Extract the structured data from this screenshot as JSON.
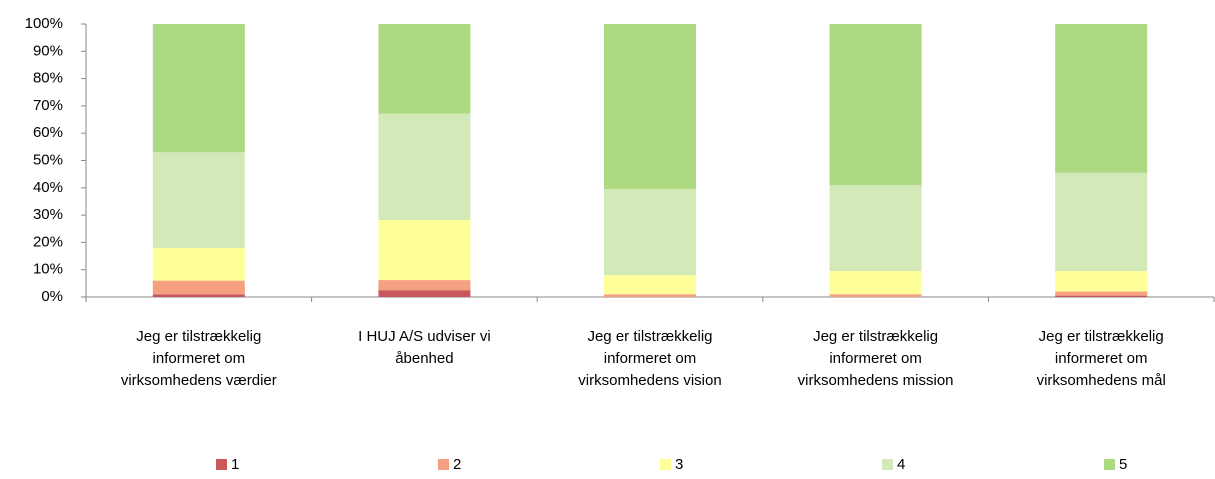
{
  "chart_data": {
    "type": "stacked_bar_percent",
    "categories": [
      [
        "Jeg er tilstrækkelig",
        "informeret om",
        "virksomhedens værdier"
      ],
      [
        "I HUJ A/S udviser vi",
        "åbenhed"
      ],
      [
        "Jeg er tilstrækkelig",
        "informeret om",
        "virksomhedens vision"
      ],
      [
        "Jeg er tilstrækkelig",
        "informeret om",
        "virksomhedens mission"
      ],
      [
        "Jeg er tilstrækkelig",
        "informeret om",
        "virksomhedens mål"
      ]
    ],
    "series": [
      {
        "name": "1",
        "color": "#c9585a",
        "values": [
          1,
          2.5,
          0,
          0,
          0.5
        ]
      },
      {
        "name": "2",
        "color": "#f4a081",
        "values": [
          5,
          3.7,
          1,
          1,
          1.5
        ]
      },
      {
        "name": "3",
        "color": "#ffff99",
        "values": [
          12,
          22,
          7,
          8.5,
          7.5
        ]
      },
      {
        "name": "4",
        "color": "#d3e9b8",
        "values": [
          35,
          39,
          31.5,
          31.5,
          36
        ]
      },
      {
        "name": "5",
        "color": "#acd982",
        "values": [
          47,
          32.8,
          60.5,
          59,
          54.5
        ]
      }
    ],
    "ylim": [
      0,
      100
    ],
    "yticks": [
      {
        "value": 0,
        "label": "0%"
      },
      {
        "value": 10,
        "label": "10%"
      },
      {
        "value": 20,
        "label": "20%"
      },
      {
        "value": 30,
        "label": "30%"
      },
      {
        "value": 40,
        "label": "40%"
      },
      {
        "value": 50,
        "label": "50%"
      },
      {
        "value": 60,
        "label": "60%"
      },
      {
        "value": 70,
        "label": "70%"
      },
      {
        "value": 80,
        "label": "80%"
      },
      {
        "value": 90,
        "label": "90%"
      },
      {
        "value": 100,
        "label": "100%"
      }
    ],
    "legend": "bottom"
  }
}
